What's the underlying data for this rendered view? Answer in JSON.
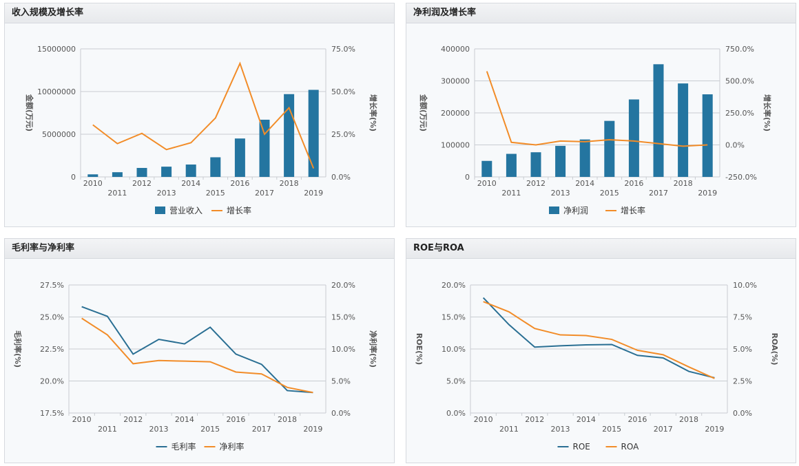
{
  "colors": {
    "bar": "#2475a0",
    "line_a": "#2a6f93",
    "line_b": "#f28c28",
    "grid": "#c8ccd1"
  },
  "chart_data": [
    {
      "id": "c0",
      "title": "收入规模及增长率",
      "type": "bar+line",
      "categories": [
        "2010",
        "2011",
        "2012",
        "2013",
        "2014",
        "2015",
        "2016",
        "2017",
        "2018",
        "2019"
      ],
      "bar": {
        "name": "营业收入",
        "values": [
          300000,
          550000,
          1050000,
          1200000,
          1450000,
          2300000,
          4500000,
          6700000,
          9700000,
          10200000
        ]
      },
      "line": {
        "name": "增长率",
        "values": [
          30.5,
          19.5,
          25.5,
          16,
          20,
          34.5,
          66.5,
          25,
          40.5,
          5
        ]
      },
      "left_axis": {
        "label": "金额(万元)",
        "min": 0,
        "max": 15000000,
        "ticks": [
          "0",
          "5000000",
          "10000000",
          "15000000"
        ]
      },
      "right_axis": {
        "label": "增长率(%)",
        "min": 0,
        "max": 75,
        "ticks": [
          "0.0%",
          "25.0%",
          "50.0%",
          "75.0%"
        ]
      }
    },
    {
      "id": "c1",
      "title": "净利润及增长率",
      "type": "bar+line",
      "categories": [
        "2010",
        "2011",
        "2012",
        "2013",
        "2014",
        "2015",
        "2016",
        "2017",
        "2018",
        "2019"
      ],
      "bar": {
        "name": "净利润",
        "values": [
          50000,
          72000,
          77000,
          97000,
          117000,
          175000,
          242000,
          352000,
          292000,
          258000
        ]
      },
      "line": {
        "name": "增长率",
        "values": [
          575,
          20,
          0,
          30,
          25,
          40,
          30,
          10,
          -10,
          0
        ]
      },
      "left_axis": {
        "label": "金额(万元)",
        "min": 0,
        "max": 400000,
        "ticks": [
          "0",
          "100000",
          "200000",
          "300000",
          "400000"
        ]
      },
      "right_axis": {
        "label": "增长率(%)",
        "min": -250,
        "max": 750,
        "ticks": [
          "-250.0%",
          "0.0%",
          "250.0%",
          "500.0%",
          "750.0%"
        ]
      }
    },
    {
      "id": "c2",
      "title": "毛利率与净利率",
      "type": "line",
      "categories": [
        "2010",
        "2011",
        "2012",
        "2013",
        "2014",
        "2015",
        "2016",
        "2017",
        "2018",
        "2019"
      ],
      "series": [
        {
          "name": "毛利率",
          "axis": "left",
          "values": [
            25.8,
            25.05,
            22.1,
            23.25,
            22.9,
            24.2,
            22.1,
            21.3,
            19.25,
            19.1
          ]
        },
        {
          "name": "净利率",
          "axis": "right",
          "values": [
            14.8,
            12.2,
            7.7,
            8.2,
            8.1,
            8.0,
            6.4,
            6.1,
            4.0,
            3.2
          ]
        }
      ],
      "left_axis": {
        "label": "毛利率(%)",
        "min": 17.5,
        "max": 27.5,
        "ticks": [
          "17.5%",
          "20.0%",
          "22.5%",
          "25.0%",
          "27.5%"
        ]
      },
      "right_axis": {
        "label": "净利率(%)",
        "min": 0,
        "max": 20,
        "ticks": [
          "0.0%",
          "5.0%",
          "10.0%",
          "15.0%",
          "20.0%"
        ]
      }
    },
    {
      "id": "c3",
      "title": "ROE与ROA",
      "type": "line",
      "categories": [
        "2010",
        "2011",
        "2012",
        "2013",
        "2014",
        "2015",
        "2016",
        "2017",
        "2018",
        "2019"
      ],
      "series": [
        {
          "name": "ROE",
          "axis": "left",
          "values": [
            18,
            13.8,
            10.3,
            10.5,
            10.65,
            10.7,
            9.0,
            8.6,
            6.5,
            5.5
          ]
        },
        {
          "name": "ROA",
          "axis": "right",
          "values": [
            8.7,
            7.9,
            6.6,
            6.1,
            6.05,
            5.75,
            4.9,
            4.55,
            3.6,
            2.7
          ]
        }
      ],
      "left_axis": {
        "label": "ROE(%)",
        "min": 0,
        "max": 20,
        "ticks": [
          "0.0%",
          "5.0%",
          "10.0%",
          "15.0%",
          "20.0%"
        ]
      },
      "right_axis": {
        "label": "ROA(%)",
        "min": 0,
        "max": 10,
        "ticks": [
          "0.0%",
          "2.5%",
          "5.0%",
          "7.5%",
          "10.0%"
        ]
      }
    }
  ]
}
